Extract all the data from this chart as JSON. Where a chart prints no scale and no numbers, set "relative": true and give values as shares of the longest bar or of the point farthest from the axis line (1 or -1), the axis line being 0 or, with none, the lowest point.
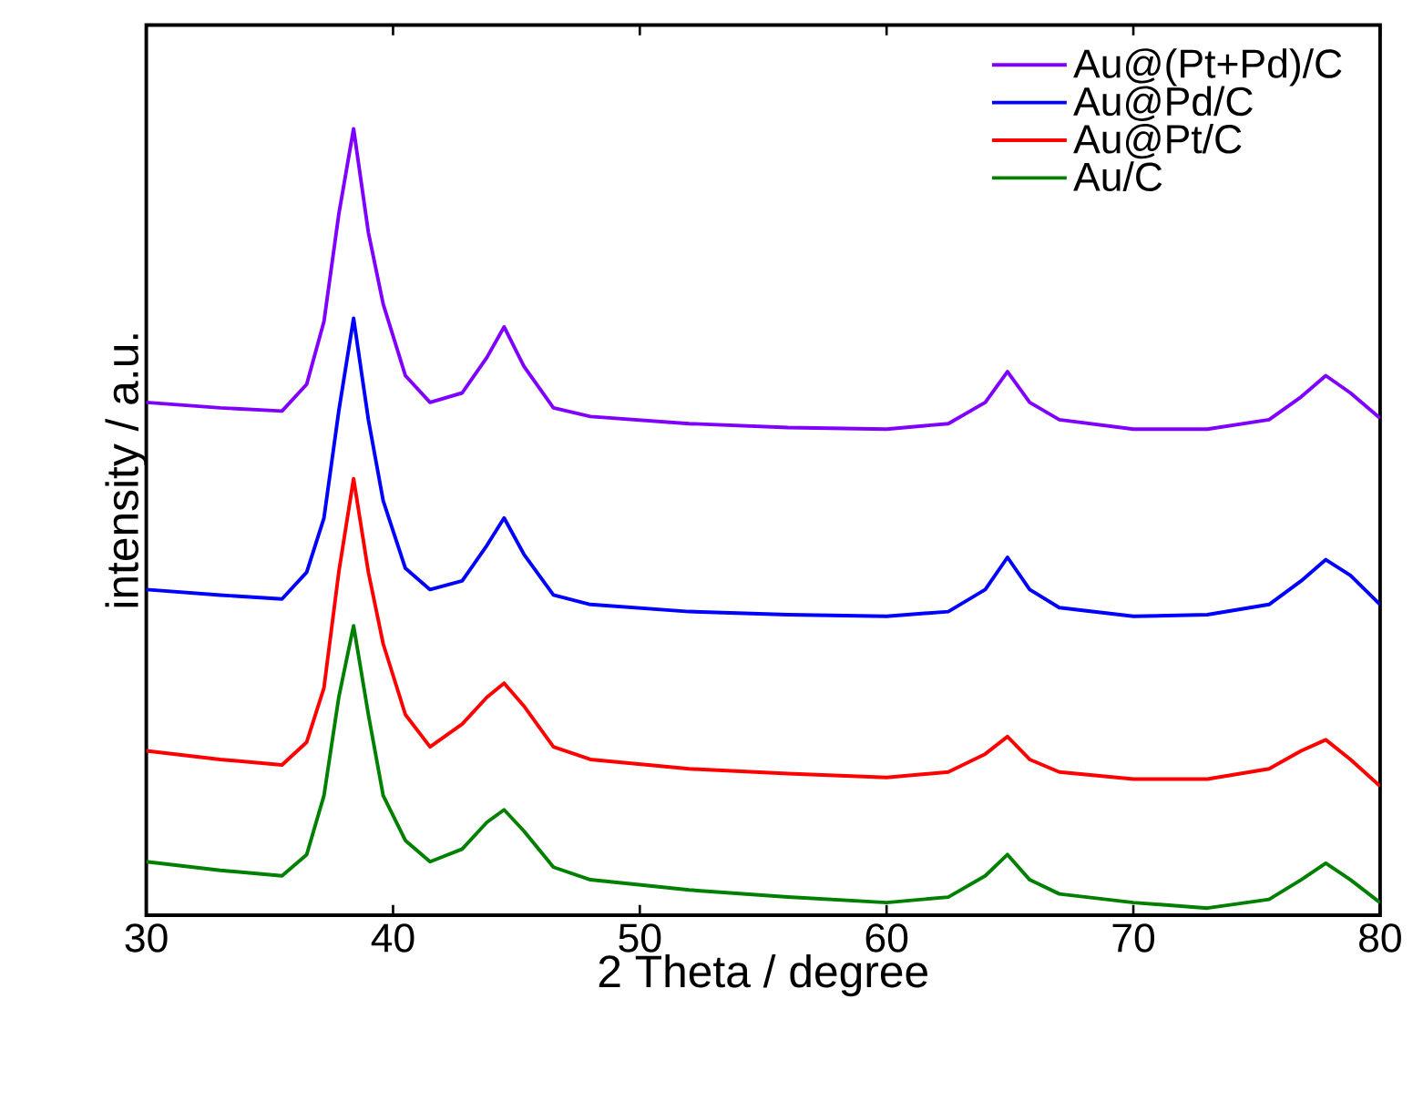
{
  "chart_data": {
    "type": "line",
    "relative": true,
    "xlabel": "2 Theta / degree",
    "ylabel": "intensity / a.u.",
    "xlim": [
      30,
      80
    ],
    "xticks": [
      30,
      40,
      50,
      60,
      70,
      80
    ],
    "legend": "top right",
    "grid": false,
    "marker": "none",
    "line_style": "solid",
    "x": [
      30,
      33,
      35.5,
      36.5,
      37.2,
      37.8,
      38.4,
      39.0,
      39.6,
      40.5,
      41.5,
      42.8,
      43.8,
      44.5,
      45.3,
      46.5,
      48,
      52,
      56,
      60,
      62.5,
      64,
      64.9,
      65.8,
      67,
      70,
      73,
      75.5,
      76.8,
      77.8,
      78.8,
      80
    ],
    "series": [
      {
        "name": "Au@(Pt+Pd)/C",
        "color": "#8000ff",
        "values": [
          0.652,
          0.645,
          0.641,
          0.675,
          0.755,
          0.891,
          1,
          0.868,
          0.777,
          0.686,
          0.652,
          0.664,
          0.709,
          0.748,
          0.698,
          0.645,
          0.634,
          0.625,
          0.62,
          0.618,
          0.625,
          0.652,
          0.691,
          0.652,
          0.63,
          0.618,
          0.618,
          0.63,
          0.659,
          0.686,
          0.664,
          0.632
        ]
      },
      {
        "name": "Au@Pd/C",
        "color": "#0000ff",
        "values": [
          0.414,
          0.407,
          0.402,
          0.436,
          0.505,
          0.641,
          0.759,
          0.63,
          0.527,
          0.441,
          0.414,
          0.425,
          0.47,
          0.505,
          0.459,
          0.407,
          0.395,
          0.386,
          0.382,
          0.38,
          0.386,
          0.414,
          0.455,
          0.414,
          0.391,
          0.38,
          0.382,
          0.395,
          0.425,
          0.452,
          0.432,
          0.395
        ]
      },
      {
        "name": "Au@Pt/C",
        "color": "#ff0000",
        "values": [
          0.209,
          0.198,
          0.191,
          0.22,
          0.289,
          0.436,
          0.555,
          0.436,
          0.345,
          0.255,
          0.214,
          0.243,
          0.277,
          0.295,
          0.266,
          0.214,
          0.198,
          0.186,
          0.18,
          0.175,
          0.182,
          0.205,
          0.227,
          0.198,
          0.182,
          0.173,
          0.173,
          0.186,
          0.209,
          0.223,
          0.198,
          0.164
        ]
      },
      {
        "name": "Au/C",
        "color": "#008000",
        "values": [
          0.068,
          0.057,
          0.05,
          0.077,
          0.152,
          0.277,
          0.368,
          0.255,
          0.152,
          0.095,
          0.068,
          0.084,
          0.118,
          0.134,
          0.107,
          0.061,
          0.045,
          0.032,
          0.023,
          0.016,
          0.023,
          0.05,
          0.077,
          0.045,
          0.027,
          0.016,
          0.009,
          0.02,
          0.045,
          0.066,
          0.045,
          0.016
        ]
      }
    ]
  }
}
